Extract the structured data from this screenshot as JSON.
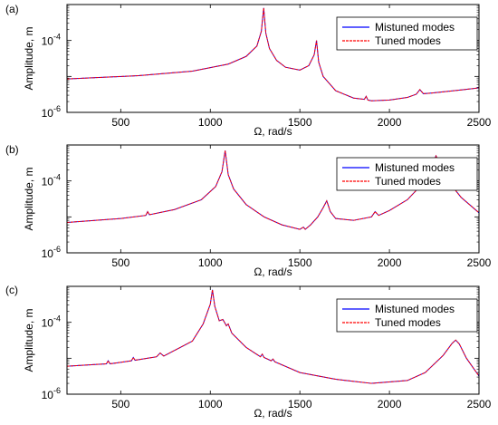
{
  "chart_data": [
    {
      "type": "line",
      "panel_label": "(a)",
      "xlabel": "Ω, rad/s",
      "ylabel": "Amplitude, m",
      "xlim": [
        200,
        2500
      ],
      "ylim": [
        1e-06,
        0.001
      ],
      "y_scale": "log",
      "x_ticks": [
        "500",
        "1000",
        "1500",
        "2000",
        "2500"
      ],
      "y_tick_labels": [
        {
          "base": "10",
          "exp": "-6"
        },
        {
          "base": "10",
          "exp": "-4"
        }
      ],
      "legend": "top-right",
      "series": [
        {
          "name": "Mistuned modes",
          "color": "#0000ff",
          "style": "solid",
          "x": [
            200,
            600,
            900,
            1100,
            1200,
            1260,
            1285,
            1298,
            1310,
            1330,
            1370,
            1420,
            1500,
            1550,
            1580,
            1593,
            1605,
            1630,
            1700,
            1800,
            1860,
            1870,
            1880,
            1900,
            2000,
            2100,
            2150,
            2170,
            2190,
            2250,
            2400,
            2500
          ],
          "y": [
            8.5e-06,
            1.05e-05,
            1.4e-05,
            2.2e-05,
            3.6e-05,
            7e-05,
            0.00018,
            0.0008,
            0.00016,
            6e-05,
            2.8e-05,
            1.8e-05,
            1.5e-05,
            2e-05,
            4e-05,
            0.0001,
            2.5e-05,
            1e-05,
            4e-06,
            2.5e-06,
            2.3e-06,
            2.8e-06,
            2.2e-06,
            2.1e-06,
            2.2e-06,
            2.6e-06,
            3.2e-06,
            4.3e-06,
            3.3e-06,
            3.5e-06,
            4.2e-06,
            4.8e-06
          ]
        },
        {
          "name": "Tuned modes",
          "color": "#ff0000",
          "style": "dashed",
          "x": [
            200,
            600,
            900,
            1100,
            1200,
            1260,
            1285,
            1298,
            1310,
            1330,
            1370,
            1420,
            1500,
            1550,
            1580,
            1593,
            1605,
            1630,
            1700,
            1800,
            1860,
            1870,
            1880,
            1900,
            2000,
            2100,
            2150,
            2170,
            2190,
            2250,
            2400,
            2500
          ],
          "y": [
            8.5e-06,
            1.05e-05,
            1.4e-05,
            2.2e-05,
            3.6e-05,
            7e-05,
            0.00018,
            0.0008,
            0.00016,
            6e-05,
            2.8e-05,
            1.8e-05,
            1.5e-05,
            2e-05,
            4e-05,
            0.0001,
            2.5e-05,
            1e-05,
            4e-06,
            2.5e-06,
            2.3e-06,
            2.8e-06,
            2.2e-06,
            2.1e-06,
            2.2e-06,
            2.6e-06,
            3.2e-06,
            4.3e-06,
            3.3e-06,
            3.5e-06,
            4.2e-06,
            4.8e-06
          ]
        }
      ]
    },
    {
      "type": "line",
      "panel_label": "(b)",
      "xlabel": "Ω, rad/s",
      "ylabel": "Amplitude, m",
      "xlim": [
        200,
        2500
      ],
      "ylim": [
        1e-06,
        0.001
      ],
      "y_scale": "log",
      "x_ticks": [
        "500",
        "1000",
        "1500",
        "2000",
        "2500"
      ],
      "y_tick_labels": [
        {
          "base": "10",
          "exp": "-6"
        },
        {
          "base": "10",
          "exp": "-4"
        }
      ],
      "legend": "top-right",
      "series": [
        {
          "name": "Mistuned modes",
          "color": "#0000ff",
          "style": "solid",
          "x": [
            200,
            500,
            640,
            650,
            660,
            800,
            950,
            1030,
            1065,
            1083,
            1100,
            1130,
            1200,
            1300,
            1400,
            1500,
            1520,
            1530,
            1560,
            1600,
            1630,
            1650,
            1670,
            1700,
            1800,
            1900,
            1920,
            1940,
            2000,
            2100,
            2200,
            2240,
            2260,
            2280,
            2320,
            2400,
            2500
          ],
          "y": [
            7e-06,
            9e-06,
            1.1e-05,
            1.4e-05,
            1.15e-05,
            1.6e-05,
            3e-05,
            7e-05,
            0.00018,
            0.0007,
            0.00015,
            6e-05,
            2.2e-05,
            1e-05,
            6e-06,
            4.5e-06,
            5.2e-06,
            4.5e-06,
            6e-06,
            1e-05,
            1.8e-05,
            2.8e-05,
            1.4e-05,
            9e-06,
            8e-06,
            1e-05,
            1.4e-05,
            1.1e-05,
            1.5e-05,
            3e-05,
            0.0001,
            0.0003,
            0.0005,
            0.0003,
            0.00011,
            3.5e-05,
            1.3e-05
          ]
        },
        {
          "name": "Tuned modes",
          "color": "#ff0000",
          "style": "dashed",
          "x": [
            200,
            500,
            640,
            650,
            660,
            800,
            950,
            1030,
            1065,
            1083,
            1100,
            1130,
            1200,
            1300,
            1400,
            1500,
            1520,
            1530,
            1560,
            1600,
            1630,
            1650,
            1670,
            1700,
            1800,
            1900,
            1920,
            1940,
            2000,
            2100,
            2200,
            2240,
            2260,
            2280,
            2320,
            2400,
            2500
          ],
          "y": [
            7e-06,
            9e-06,
            1.1e-05,
            1.4e-05,
            1.15e-05,
            1.6e-05,
            3e-05,
            7e-05,
            0.00018,
            0.0007,
            0.00015,
            6e-05,
            2.2e-05,
            1e-05,
            6e-06,
            4.5e-06,
            5.2e-06,
            4.5e-06,
            6e-06,
            1e-05,
            1.8e-05,
            2.8e-05,
            1.4e-05,
            9e-06,
            8e-06,
            1e-05,
            1.4e-05,
            1.1e-05,
            1.5e-05,
            3e-05,
            0.0001,
            0.0003,
            0.0005,
            0.0003,
            0.00011,
            3.5e-05,
            1.3e-05
          ]
        }
      ]
    },
    {
      "type": "line",
      "panel_label": "(c)",
      "xlabel": "Ω, rad/s",
      "ylabel": "Amplitude, m",
      "xlim": [
        200,
        2500
      ],
      "ylim": [
        1e-06,
        0.001
      ],
      "y_scale": "log",
      "x_ticks": [
        "500",
        "1000",
        "1500",
        "2000",
        "2500"
      ],
      "y_tick_labels": [
        {
          "base": "10",
          "exp": "-6"
        },
        {
          "base": "10",
          "exp": "-4"
        }
      ],
      "legend": "top-right",
      "series": [
        {
          "name": "Mistuned modes",
          "color": "#0000ff",
          "style": "solid",
          "x": [
            200,
            420,
            430,
            440,
            560,
            570,
            580,
            700,
            720,
            740,
            900,
            960,
            1000,
            1012,
            1025,
            1050,
            1070,
            1090,
            1100,
            1120,
            1200,
            1280,
            1290,
            1300,
            1340,
            1350,
            1360,
            1500,
            1700,
            1900,
            2100,
            2200,
            2300,
            2350,
            2370,
            2390,
            2430,
            2500
          ],
          "y": [
            6e-06,
            7e-06,
            8.5e-06,
            7e-06,
            8.5e-06,
            1.05e-05,
            8.8e-06,
            1.1e-05,
            1.4e-05,
            1.15e-05,
            3e-05,
            9e-05,
            0.00032,
            0.0008,
            0.00028,
            0.00011,
            0.00012,
            8e-05,
            9e-05,
            5e-05,
            2e-05,
            1.1e-05,
            1.3e-05,
            1.05e-05,
            8.5e-06,
            9.5e-06,
            8e-06,
            4e-06,
            2.6e-06,
            2e-06,
            2.4e-06,
            4e-06,
            1.2e-05,
            2.6e-05,
            3.2e-05,
            2.5e-05,
            1e-05,
            3.2e-06
          ]
        },
        {
          "name": "Tuned modes",
          "color": "#ff0000",
          "style": "dashed",
          "x": [
            200,
            420,
            430,
            440,
            560,
            570,
            580,
            700,
            720,
            740,
            900,
            960,
            1000,
            1012,
            1025,
            1050,
            1070,
            1090,
            1100,
            1120,
            1200,
            1280,
            1290,
            1300,
            1340,
            1350,
            1360,
            1500,
            1700,
            1900,
            2100,
            2200,
            2300,
            2350,
            2370,
            2390,
            2430,
            2500
          ],
          "y": [
            6e-06,
            7e-06,
            8.5e-06,
            7e-06,
            8.5e-06,
            1.05e-05,
            8.8e-06,
            1.1e-05,
            1.4e-05,
            1.15e-05,
            3e-05,
            9e-05,
            0.00032,
            0.0008,
            0.00028,
            0.00011,
            0.00012,
            8e-05,
            9e-05,
            5e-05,
            2e-05,
            1.1e-05,
            1.3e-05,
            1.05e-05,
            8.5e-06,
            9.5e-06,
            8e-06,
            4e-06,
            2.6e-06,
            2e-06,
            2.4e-06,
            4e-06,
            1.2e-05,
            2.6e-05,
            3.2e-05,
            2.5e-05,
            1e-05,
            3.2e-06
          ]
        }
      ]
    }
  ]
}
